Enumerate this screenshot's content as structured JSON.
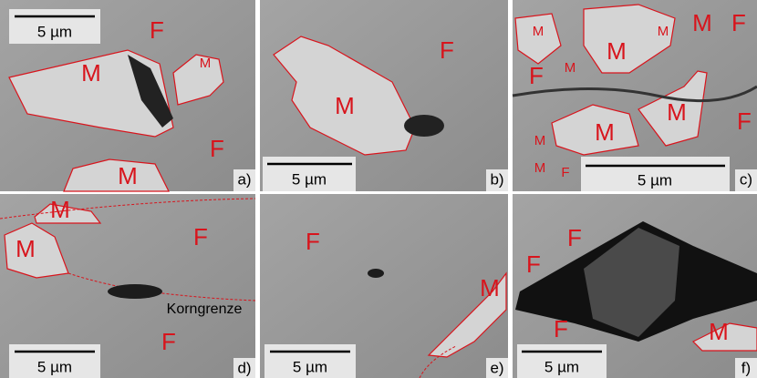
{
  "panels": [
    {
      "label": "a)",
      "scale_bar": "5 µm",
      "phases": [
        "F",
        "M",
        "M",
        "F",
        "M"
      ]
    },
    {
      "label": "b)",
      "scale_bar": "5 µm",
      "phases": [
        "F",
        "M"
      ]
    },
    {
      "label": "c)",
      "scale_bar": "5 µm",
      "phases": [
        "M",
        "M",
        "M",
        "M",
        "M",
        "M",
        "M",
        "M",
        "M",
        "F",
        "F",
        "F",
        "F"
      ]
    },
    {
      "label": "d)",
      "scale_bar": "5 µm",
      "phases": [
        "M",
        "M",
        "F",
        "F"
      ],
      "annotation": "Korngrenze"
    },
    {
      "label": "e)",
      "scale_bar": "5 µm",
      "phases": [
        "F",
        "M"
      ]
    },
    {
      "label": "f)",
      "scale_bar": "5 µm",
      "phases": [
        "F",
        "F",
        "F",
        "M"
      ]
    }
  ]
}
